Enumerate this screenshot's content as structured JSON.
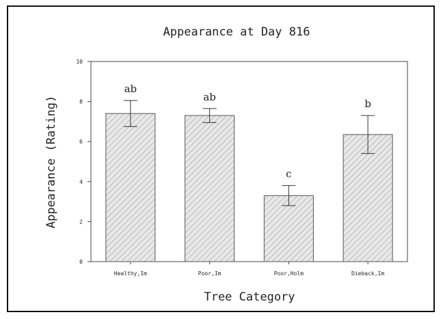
{
  "chart_data": {
    "type": "bar",
    "title": "Appearance at Day 816",
    "xlabel": "Tree Category",
    "ylabel": "Appearance (Rating)",
    "ylim": [
      0,
      10
    ],
    "yticks": [
      "0",
      "2",
      "4",
      "6",
      "8",
      "10"
    ],
    "categories": [
      "Healthy,Im",
      "Poor,Im",
      "Poor,Holm",
      "Dieback,Im"
    ],
    "values": [
      7.4,
      7.3,
      3.3,
      6.35
    ],
    "error": [
      0.65,
      0.35,
      0.5,
      0.95
    ],
    "significance_letters": [
      "ab",
      "ab",
      "c",
      "b"
    ],
    "grid": false,
    "legend": "none",
    "colors": {
      "bar_fill": "#e8e8e8",
      "hatch": "#9a9a9a",
      "stroke": "#555555"
    }
  }
}
